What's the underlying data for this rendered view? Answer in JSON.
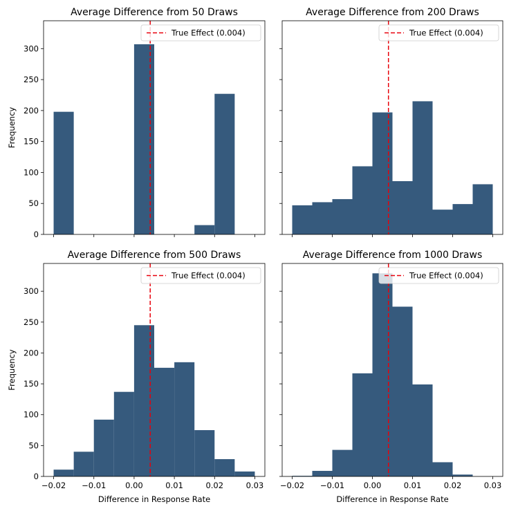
{
  "chart_data": [
    {
      "type": "bar",
      "title": "Average Difference from 50 Draws",
      "xlabel": "",
      "ylabel": "Frequency",
      "bin_edges": [
        -0.02,
        -0.015,
        -0.01,
        -0.005,
        0.0,
        0.005,
        0.01,
        0.015,
        0.02,
        0.025,
        0.03
      ],
      "values": [
        198,
        0,
        0,
        0,
        307,
        0,
        0,
        15,
        227,
        0
      ],
      "true_effect": 0.004,
      "legend_label": "True Effect (0.004)",
      "legend_position": "upper right"
    },
    {
      "type": "bar",
      "title": "Average Difference from 200 Draws",
      "xlabel": "",
      "ylabel": "",
      "bin_edges": [
        -0.02,
        -0.015,
        -0.01,
        -0.005,
        0.0,
        0.005,
        0.01,
        0.015,
        0.02,
        0.025,
        0.03
      ],
      "values": [
        47,
        52,
        57,
        110,
        197,
        86,
        215,
        40,
        49,
        81
      ],
      "true_effect": 0.004,
      "legend_label": "True Effect (0.004)",
      "legend_position": "upper right"
    },
    {
      "type": "bar",
      "title": "Average Difference from 500 Draws",
      "xlabel": "Difference in Response Rate",
      "ylabel": "Frequency",
      "bin_edges": [
        -0.02,
        -0.015,
        -0.01,
        -0.005,
        0.0,
        0.005,
        0.01,
        0.015,
        0.02,
        0.025,
        0.03
      ],
      "values": [
        11,
        40,
        92,
        137,
        245,
        176,
        185,
        75,
        28,
        8
      ],
      "true_effect": 0.004,
      "legend_label": "True Effect (0.004)",
      "legend_position": "upper right"
    },
    {
      "type": "bar",
      "title": "Average Difference from 1000 Draws",
      "xlabel": "Difference in Response Rate",
      "ylabel": "",
      "bin_edges": [
        -0.02,
        -0.015,
        -0.01,
        -0.005,
        0.0,
        0.005,
        0.01,
        0.015,
        0.02,
        0.025,
        0.03
      ],
      "values": [
        1,
        9,
        43,
        167,
        329,
        275,
        149,
        23,
        3,
        0
      ],
      "true_effect": 0.004,
      "legend_label": "True Effect (0.004)",
      "legend_position": "upper right"
    }
  ],
  "shared_axes": {
    "xlim": [
      -0.0225,
      0.0325
    ],
    "ylim": [
      0,
      345
    ],
    "xticks": [
      -0.02,
      -0.01,
      0.0,
      0.01,
      0.02,
      0.03
    ],
    "xtick_labels": [
      "−0.02",
      "−0.01",
      "0.00",
      "0.01",
      "0.02",
      "0.03"
    ],
    "yticks": [
      0,
      50,
      100,
      150,
      200,
      250,
      300
    ],
    "ytick_labels": [
      "0",
      "50",
      "100",
      "150",
      "200",
      "250",
      "300"
    ],
    "grid": false
  },
  "colors": {
    "bar_fill": "#365a7d",
    "true_effect_line": "#e8000b",
    "axis": "#000000"
  }
}
